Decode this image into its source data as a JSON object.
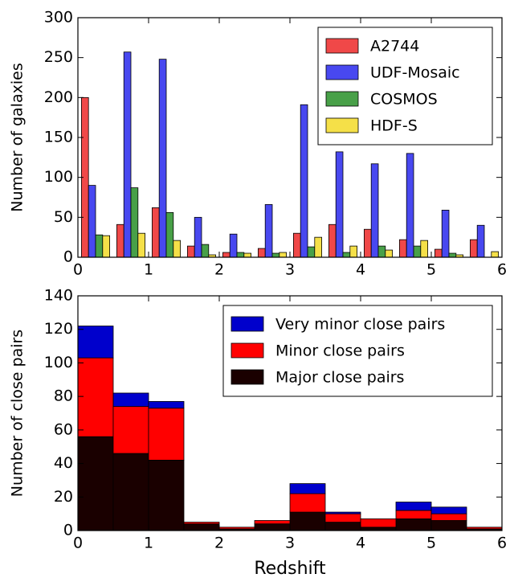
{
  "chart_data": [
    {
      "type": "grouped_histogram",
      "ylabel": "Number of galaxies",
      "bins": [
        0,
        0.5,
        1,
        1.5,
        2,
        2.5,
        3,
        3.5,
        4,
        4.5,
        5,
        5.5,
        6
      ],
      "series": [
        {
          "name": "A2744",
          "color": "#f04848",
          "values": [
            200,
            41,
            62,
            14,
            6,
            11,
            30,
            41,
            35,
            22,
            10,
            22
          ]
        },
        {
          "name": "UDF-Mosaic",
          "color": "#4848f0",
          "values": [
            90,
            257,
            248,
            50,
            29,
            66,
            191,
            132,
            117,
            130,
            59,
            40
          ]
        },
        {
          "name": "COSMOS",
          "color": "#48a048",
          "values": [
            28,
            87,
            56,
            16,
            6,
            5,
            13,
            6,
            14,
            14,
            5,
            0
          ]
        },
        {
          "name": "HDF-S",
          "color": "#f5e048",
          "values": [
            27,
            30,
            21,
            3,
            5,
            6,
            25,
            14,
            9,
            21,
            3,
            7
          ]
        }
      ],
      "xlim": [
        0,
        6
      ],
      "xticks": [
        0,
        1,
        2,
        3,
        4,
        5,
        6
      ],
      "ylim": [
        0,
        300
      ],
      "yticks": [
        0,
        50,
        100,
        150,
        200,
        250,
        300
      ],
      "legend": "upper right"
    },
    {
      "type": "stacked_histogram",
      "xlabel": "Redshift",
      "ylabel": "Number of close pairs",
      "bins": [
        0,
        0.5,
        1,
        1.5,
        2,
        2.5,
        3,
        3.5,
        4,
        4.5,
        5,
        5.5,
        6
      ],
      "series": [
        {
          "name": "Major close pairs",
          "color": "#1a0000",
          "values": [
            56,
            46,
            42,
            4,
            1,
            4,
            11,
            5,
            2,
            7,
            6,
            1
          ]
        },
        {
          "name": "Minor close pairs",
          "color": "#ff0000",
          "values": [
            47,
            28,
            31,
            1,
            1,
            2,
            11,
            5,
            5,
            5,
            4,
            1
          ]
        },
        {
          "name": "Very minor close pairs",
          "color": "#0000cc",
          "values": [
            19,
            8,
            4,
            0,
            0,
            0,
            6,
            1,
            0,
            5,
            4,
            0
          ]
        }
      ],
      "xlim": [
        0,
        6
      ],
      "xticks": [
        0,
        1,
        2,
        3,
        4,
        5,
        6
      ],
      "ylim": [
        0,
        140
      ],
      "yticks": [
        0,
        20,
        40,
        60,
        80,
        100,
        120,
        140
      ],
      "legend": "upper right"
    }
  ]
}
